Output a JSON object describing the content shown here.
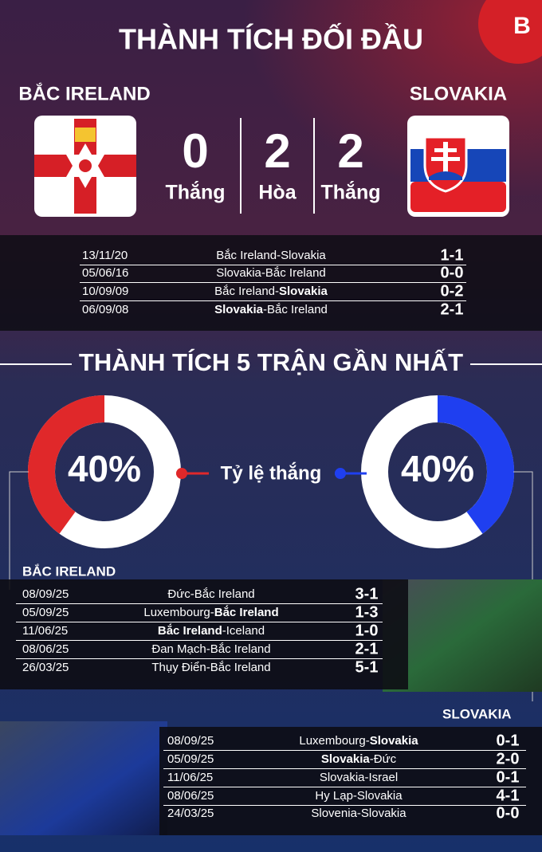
{
  "header": {
    "title": "THÀNH TÍCH ĐỐI ĐẦU",
    "logo": "B"
  },
  "teams": {
    "home": "BẮC IRELAND",
    "away": "SLOVAKIA"
  },
  "head_to_head": {
    "stats": [
      {
        "value": 0,
        "label": "Thắng"
      },
      {
        "value": 2,
        "label": "Hòa"
      },
      {
        "value": 2,
        "label": "Thắng"
      }
    ],
    "matches": [
      {
        "date": "13/11/20",
        "parts": [
          {
            "text": "Bắc Ireland-Slovakia",
            "bold": false
          }
        ],
        "score": "1-1"
      },
      {
        "date": "05/06/16",
        "parts": [
          {
            "text": "Slovakia-Bắc Ireland",
            "bold": false
          }
        ],
        "score": "0-0"
      },
      {
        "date": "10/09/09",
        "parts": [
          {
            "text": "Bắc Ireland-",
            "bold": false
          },
          {
            "text": "Slovakia",
            "bold": true
          }
        ],
        "score": "0-2"
      },
      {
        "date": "06/09/08",
        "parts": [
          {
            "text": "Slovakia",
            "bold": true
          },
          {
            "text": "-Bắc Ireland",
            "bold": false
          }
        ],
        "score": "2-1"
      }
    ]
  },
  "recent": {
    "title": "THÀNH TÍCH 5 TRẬN GẦN NHẤT",
    "win_rate_label": "Tỷ lệ thắng",
    "win_rates": [
      {
        "value": 40,
        "label": "40%",
        "color": "#e0282a"
      },
      {
        "value": 40,
        "label": "40%",
        "color": "#1f3ff0"
      }
    ],
    "home": {
      "team": "BẮC IRELAND",
      "matches": [
        {
          "date": "08/09/25",
          "parts": [
            {
              "text": "Đức-Bắc Ireland",
              "bold": false
            }
          ],
          "score": "3-1"
        },
        {
          "date": "05/09/25",
          "parts": [
            {
              "text": "Luxembourg-",
              "bold": false
            },
            {
              "text": "Bắc Ireland",
              "bold": true
            }
          ],
          "score": "1-3"
        },
        {
          "date": "11/06/25",
          "parts": [
            {
              "text": "Bắc Ireland",
              "bold": true
            },
            {
              "text": "-Iceland",
              "bold": false
            }
          ],
          "score": "1-0"
        },
        {
          "date": "08/06/25",
          "parts": [
            {
              "text": "Đan Mạch-Bắc Ireland",
              "bold": false
            }
          ],
          "score": "2-1"
        },
        {
          "date": "26/03/25",
          "parts": [
            {
              "text": "Thụy Điển-Bắc Ireland",
              "bold": false
            }
          ],
          "score": "5-1"
        }
      ]
    },
    "away": {
      "team": "SLOVAKIA",
      "matches": [
        {
          "date": "08/09/25",
          "parts": [
            {
              "text": "Luxembourg-",
              "bold": false
            },
            {
              "text": "Slovakia",
              "bold": true
            }
          ],
          "score": "0-1"
        },
        {
          "date": "05/09/25",
          "parts": [
            {
              "text": "Slovakia",
              "bold": true
            },
            {
              "text": "-Đức",
              "bold": false
            }
          ],
          "score": "2-0"
        },
        {
          "date": "11/06/25",
          "parts": [
            {
              "text": "Slovakia-Israel",
              "bold": false
            }
          ],
          "score": "0-1"
        },
        {
          "date": "08/06/25",
          "parts": [
            {
              "text": "Hy Lạp-Slovakia",
              "bold": false
            }
          ],
          "score": "4-1"
        },
        {
          "date": "24/03/25",
          "parts": [
            {
              "text": "Slovenia-Slovakia",
              "bold": false
            }
          ],
          "score": "0-0"
        }
      ]
    }
  }
}
